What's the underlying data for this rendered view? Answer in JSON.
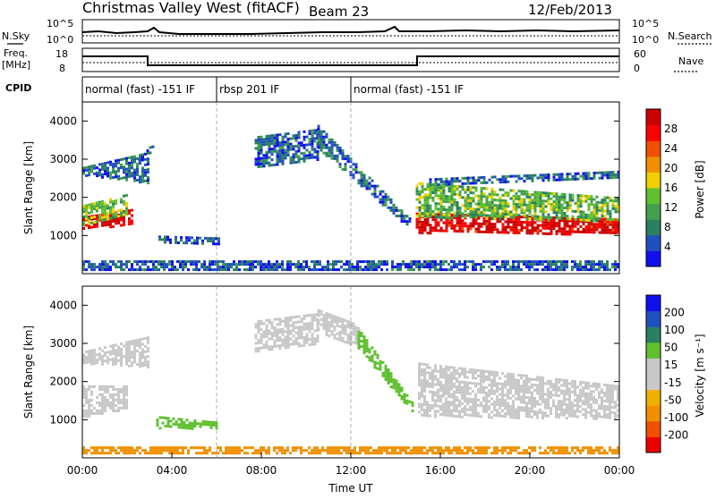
{
  "header": {
    "station": "Christmas Valley West (fitACF)",
    "beam": "Beam 23",
    "date": "12/Feb/2013"
  },
  "top_panels": {
    "nsky_label": "N.Sky",
    "nsearch_label": "N.Search",
    "freq_label_1": "Freq.",
    "freq_label_2": "[MHz]",
    "nave_label": "Nave",
    "cpid_label": "CPID",
    "noise_ticks_left": [
      "10^5",
      "10^0"
    ],
    "noise_ticks_right": [
      "10^5",
      "10^0"
    ],
    "freq_ticks_left": [
      "18",
      "8"
    ],
    "freq_ticks_right": [
      "60",
      "0"
    ]
  },
  "cpid_segments": [
    {
      "label": "normal (fast) -151 IF",
      "start_hour": 0,
      "end_hour": 6
    },
    {
      "label": "rbsp 201 IF",
      "start_hour": 6,
      "end_hour": 12
    },
    {
      "label": "normal (fast) -151 IF",
      "start_hour": 12,
      "end_hour": 24
    }
  ],
  "colors": {
    "power": [
      "#1010ee",
      "#2050c0",
      "#2a8060",
      "#44a050",
      "#60c030",
      "#f0d000",
      "#f09000",
      "#f05000",
      "#ff0000",
      "#cc0000"
    ],
    "velocity": [
      "#ee0000",
      "#f05000",
      "#f09000",
      "#f0b000",
      "#c8c8c8",
      "#c8c8c8",
      "#60c030",
      "#2a8060",
      "#2050c0",
      "#1010ee"
    ]
  },
  "chart_data": [
    {
      "type": "heatmap",
      "name": "power",
      "x_unit": "hour UT",
      "xlim": [
        0,
        24
      ],
      "ylim": [
        0,
        4500
      ],
      "ylabel": "Slant Range [km]",
      "y_ticks": [
        1000,
        2000,
        3000,
        4000
      ],
      "colorbar_label": "Power [dB]",
      "colorbar_ticks": [
        4,
        8,
        12,
        16,
        20,
        24,
        28
      ],
      "colorbar_range": [
        0,
        32
      ],
      "regions": [
        {
          "t0": 0.0,
          "t1": 2.2,
          "r0_start": 1200,
          "r0_end": 1500,
          "r1_start": 1300,
          "r1_end": 1700,
          "value": 30
        },
        {
          "t0": 0.0,
          "t1": 2.0,
          "r0_start": 1300,
          "r0_end": 1800,
          "r1_start": 1600,
          "r1_end": 2100,
          "value": 14
        },
        {
          "t0": 0.0,
          "t1": 3.0,
          "r0_start": 2600,
          "r0_end": 2800,
          "r1_start": 2400,
          "r1_end": 3200,
          "value": 6
        },
        {
          "t0": 2.5,
          "t1": 3.2,
          "r0_start": 2900,
          "r0_end": 3000,
          "r1_start": 3300,
          "r1_end": 3500,
          "value": 5
        },
        {
          "t0": 3.4,
          "t1": 6.2,
          "r0_start": 800,
          "r0_end": 1000,
          "r1_start": 800,
          "r1_end": 950,
          "value": 5
        },
        {
          "t0": 7.7,
          "t1": 10.5,
          "r0_start": 2800,
          "r0_end": 3600,
          "r1_start": 3000,
          "r1_end": 3800,
          "value": 6
        },
        {
          "t0": 10.5,
          "t1": 14.7,
          "r0_start": 3300,
          "r0_end": 3900,
          "r1_start": 1150,
          "r1_end": 1400,
          "value": 6
        },
        {
          "t0": 14.9,
          "t1": 24.0,
          "r0_start": 1100,
          "r0_end": 1600,
          "r1_start": 1050,
          "r1_end": 1450,
          "value": 30
        },
        {
          "t0": 14.9,
          "t1": 24.0,
          "r0_start": 1500,
          "r0_end": 2400,
          "r1_start": 1400,
          "r1_end": 2000,
          "value": 13
        },
        {
          "t0": 15.5,
          "t1": 24.0,
          "r0_start": 2300,
          "r0_end": 2500,
          "r1_start": 2500,
          "r1_end": 2700,
          "value": 6
        },
        {
          "t0": 0.0,
          "t1": 24.0,
          "r0_start": 100,
          "r0_end": 350,
          "r1_start": 100,
          "r1_end": 350,
          "value": 5
        }
      ]
    },
    {
      "type": "heatmap",
      "name": "velocity",
      "x_unit": "hour UT",
      "xlim": [
        0,
        24
      ],
      "ylim": [
        0,
        4500
      ],
      "xlabel": "Time UT",
      "ylabel": "Slant Range [km]",
      "x_ticks": [
        "00:00",
        "04:00",
        "08:00",
        "12:00",
        "16:00",
        "20:00",
        "00:00"
      ],
      "y_ticks": [
        1000,
        2000,
        3000,
        4000
      ],
      "colorbar_label": "Velocity [m s⁻¹]",
      "colorbar_ticks": [
        "-200",
        "-100",
        "-50",
        "-15",
        "15",
        "50",
        "100",
        "200"
      ],
      "regions": [
        {
          "t0": 0.0,
          "t1": 2.0,
          "r0_start": 1100,
          "r0_end": 1900,
          "r1_start": 1300,
          "r1_end": 1900,
          "value": 0
        },
        {
          "t0": 0.0,
          "t1": 3.0,
          "r0_start": 2500,
          "r0_end": 2800,
          "r1_start": 2400,
          "r1_end": 3200,
          "value": 0
        },
        {
          "t0": 3.3,
          "t1": 6.0,
          "r0_start": 800,
          "r0_end": 1100,
          "r1_start": 800,
          "r1_end": 950,
          "value": 40
        },
        {
          "t0": 7.7,
          "t1": 10.5,
          "r0_start": 2800,
          "r0_end": 3600,
          "r1_start": 3000,
          "r1_end": 3800,
          "value": 0
        },
        {
          "t0": 10.5,
          "t1": 12.3,
          "r0_start": 3300,
          "r0_end": 3900,
          "r1_start": 2900,
          "r1_end": 3500,
          "value": 0
        },
        {
          "t0": 12.3,
          "t1": 14.8,
          "r0_start": 2900,
          "r0_end": 3400,
          "r1_start": 1150,
          "r1_end": 1400,
          "value": 40
        },
        {
          "t0": 15.0,
          "t1": 24.0,
          "r0_start": 1100,
          "r0_end": 2500,
          "r1_start": 1050,
          "r1_end": 1900,
          "value": 0
        },
        {
          "t0": 0.0,
          "t1": 24.0,
          "r0_start": 100,
          "r0_end": 300,
          "r1_start": 100,
          "r1_end": 300,
          "value": -60
        }
      ]
    }
  ]
}
